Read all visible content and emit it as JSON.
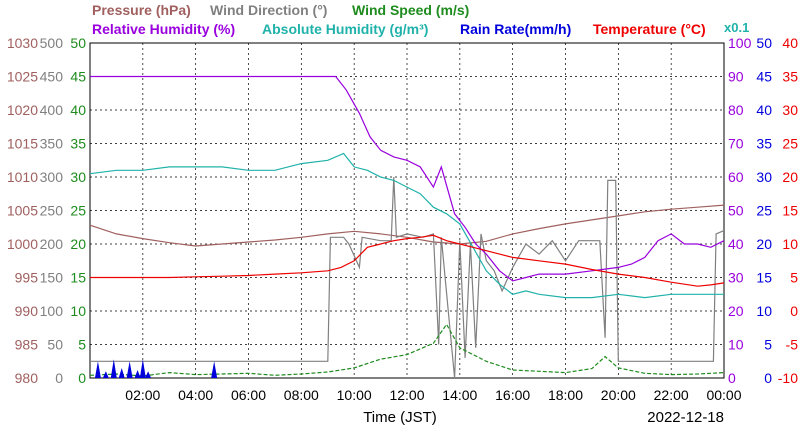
{
  "chart_data": {
    "type": "line",
    "title": "",
    "date": "2022-12-18",
    "xlabel": "Time (JST)",
    "x_ticks": [
      "02:00",
      "04:00",
      "06:00",
      "08:00",
      "10:00",
      "12:00",
      "14:00",
      "16:00",
      "18:00",
      "20:00",
      "22:00",
      "00:00"
    ],
    "x_range_hours": [
      0,
      24
    ],
    "grid": true,
    "legend": {
      "placement": "top",
      "row1": [
        "Pressure (hPa)",
        "Wind Direction (°)",
        "Wind Speed (m/s)"
      ],
      "row2": [
        "Relative Humidity (%)",
        "Absolute Humidity (g/m³)",
        "Rain Rate(mm/h)",
        "Temperature (°C)"
      ],
      "abs_humidity_scale_note": "x0.1"
    },
    "axes": {
      "pressure": {
        "label": "Pressure (hPa)",
        "color": "#a0605f",
        "range": [
          980,
          1030
        ],
        "ticks": [
          "1030",
          "1025",
          "1020",
          "1015",
          "1010",
          "1005",
          "1000",
          "995",
          "990",
          "985",
          "980"
        ]
      },
      "wind_direction": {
        "label": "Wind Direction (°)",
        "color": "#808080",
        "range": [
          0,
          500
        ],
        "ticks": [
          "500",
          "450",
          "400",
          "350",
          "300",
          "250",
          "200",
          "150",
          "100",
          "50",
          "0"
        ]
      },
      "wind_speed": {
        "label": "Wind Speed (m/s)",
        "color": "#1e8c1e",
        "range": [
          0,
          50
        ],
        "ticks": [
          "50",
          "45",
          "40",
          "35",
          "30",
          "25",
          "20",
          "15",
          "10",
          "5",
          "0"
        ]
      },
      "relative_humidity": {
        "label": "Relative Humidity (%)",
        "color": "#9900dd",
        "range": [
          0,
          100
        ],
        "ticks": [
          "100",
          "90",
          "80",
          "70",
          "60",
          "50",
          "40",
          "30",
          "20",
          "10",
          "0"
        ]
      },
      "rain_rate": {
        "label": "Rain Rate(mm/h)",
        "color": "#0000dd",
        "range": [
          0,
          50
        ],
        "ticks": [
          "50",
          "45",
          "40",
          "35",
          "30",
          "25",
          "20",
          "15",
          "10",
          "5",
          "0"
        ]
      },
      "temperature": {
        "label": "Temperature (°C)",
        "color": "#ee0000",
        "range": [
          -10,
          40
        ],
        "ticks": [
          "40",
          "35",
          "30",
          "25",
          "20",
          "15",
          "10",
          "5",
          "0",
          "-5",
          "-10"
        ]
      }
    },
    "series": [
      {
        "name": "Pressure (hPa)",
        "color": "#a0605f",
        "axis": "pressure",
        "points": [
          [
            0,
            1002.8
          ],
          [
            1,
            1001.5
          ],
          [
            2,
            1000.8
          ],
          [
            3,
            1000.2
          ],
          [
            4,
            999.7
          ],
          [
            5,
            1000.0
          ],
          [
            6,
            1000.3
          ],
          [
            7,
            1000.6
          ],
          [
            8,
            1001.0
          ],
          [
            9,
            1001.5
          ],
          [
            10,
            1001.9
          ],
          [
            11,
            1001.5
          ],
          [
            12,
            1001.0
          ],
          [
            13,
            1000.3
          ],
          [
            14,
            1000.0
          ],
          [
            15,
            1000.4
          ],
          [
            16,
            1001.5
          ],
          [
            17,
            1002.3
          ],
          [
            18,
            1003.0
          ],
          [
            19,
            1003.6
          ],
          [
            20,
            1004.2
          ],
          [
            21,
            1004.8
          ],
          [
            22,
            1005.2
          ],
          [
            23,
            1005.5
          ],
          [
            24,
            1005.8
          ]
        ]
      },
      {
        "name": "Wind Direction (°)",
        "color": "#808080",
        "axis": "wind_direction",
        "points": [
          [
            0,
            25
          ],
          [
            4.8,
            25
          ],
          [
            5,
            25
          ],
          [
            8,
            25
          ],
          [
            9.0,
            25
          ],
          [
            9.1,
            210
          ],
          [
            9.6,
            210
          ],
          [
            9.8,
            200
          ],
          [
            10.2,
            165
          ],
          [
            10.3,
            210
          ],
          [
            11,
            205
          ],
          [
            11.4,
            205
          ],
          [
            11.5,
            300
          ],
          [
            11.6,
            210
          ],
          [
            12,
            215
          ],
          [
            12.6,
            210
          ],
          [
            13,
            215
          ],
          [
            13.2,
            50
          ],
          [
            13.3,
            210
          ],
          [
            13.8,
            0
          ],
          [
            14,
            205
          ],
          [
            14.2,
            30
          ],
          [
            14.4,
            200
          ],
          [
            14.6,
            45
          ],
          [
            14.8,
            215
          ],
          [
            15,
            175
          ],
          [
            15.3,
            160
          ],
          [
            15.6,
            130
          ],
          [
            16,
            165
          ],
          [
            16.5,
            200
          ],
          [
            17,
            185
          ],
          [
            17.5,
            205
          ],
          [
            18,
            175
          ],
          [
            18.5,
            205
          ],
          [
            19,
            205
          ],
          [
            19.3,
            205
          ],
          [
            19.5,
            60
          ],
          [
            19.6,
            295
          ],
          [
            19.9,
            295
          ],
          [
            20,
            25
          ],
          [
            21,
            25
          ],
          [
            22,
            25
          ],
          [
            23,
            25
          ],
          [
            23.6,
            25
          ],
          [
            23.7,
            215
          ],
          [
            24,
            220
          ]
        ]
      },
      {
        "name": "Wind Speed (m/s)",
        "color": "#1e8c1e",
        "axis": "wind_speed",
        "points": [
          [
            0,
            0.4
          ],
          [
            1,
            0.6
          ],
          [
            2,
            0.3
          ],
          [
            3,
            0.8
          ],
          [
            4,
            0.5
          ],
          [
            5,
            0.6
          ],
          [
            6,
            0.7
          ],
          [
            7,
            0.4
          ],
          [
            8,
            0.6
          ],
          [
            9,
            0.9
          ],
          [
            10,
            1.5
          ],
          [
            11,
            2.8
          ],
          [
            12,
            3.5
          ],
          [
            13,
            5.2
          ],
          [
            13.5,
            8.0
          ],
          [
            14,
            4.5
          ],
          [
            15,
            2.5
          ],
          [
            16,
            1.2
          ],
          [
            17,
            1.0
          ],
          [
            18,
            0.8
          ],
          [
            19,
            1.4
          ],
          [
            19.5,
            3.2
          ],
          [
            20,
            1.5
          ],
          [
            21,
            0.7
          ],
          [
            22,
            0.5
          ],
          [
            23,
            0.6
          ],
          [
            24,
            0.8
          ]
        ]
      },
      {
        "name": "Relative Humidity (%)",
        "color": "#9900dd",
        "axis": "relative_humidity",
        "points": [
          [
            0,
            90
          ],
          [
            1,
            90
          ],
          [
            4,
            90
          ],
          [
            8,
            90
          ],
          [
            9.3,
            90
          ],
          [
            9.7,
            86
          ],
          [
            10.2,
            79
          ],
          [
            10.6,
            72
          ],
          [
            11,
            68
          ],
          [
            11.5,
            66
          ],
          [
            12,
            65
          ],
          [
            12.5,
            63
          ],
          [
            13,
            57
          ],
          [
            13.3,
            63
          ],
          [
            13.8,
            49
          ],
          [
            14.2,
            45
          ],
          [
            14.6,
            40
          ],
          [
            15,
            37
          ],
          [
            15.5,
            32
          ],
          [
            16,
            29
          ],
          [
            16.5,
            30
          ],
          [
            17,
            31
          ],
          [
            18,
            31
          ],
          [
            19,
            32
          ],
          [
            20,
            33
          ],
          [
            20.5,
            34
          ],
          [
            21,
            36
          ],
          [
            21.5,
            41
          ],
          [
            22,
            43
          ],
          [
            22.5,
            40
          ],
          [
            23,
            40
          ],
          [
            23.5,
            39
          ],
          [
            24,
            41
          ]
        ]
      },
      {
        "name": "Absolute Humidity (g/m³)",
        "color": "#20b2aa",
        "axis": "relative_humidity",
        "scale": "x0.1",
        "points": [
          [
            0,
            61
          ],
          [
            1,
            62
          ],
          [
            2,
            62
          ],
          [
            3,
            63
          ],
          [
            4,
            63
          ],
          [
            5,
            63
          ],
          [
            6,
            62
          ],
          [
            7,
            62
          ],
          [
            8,
            64
          ],
          [
            9,
            65
          ],
          [
            9.6,
            67
          ],
          [
            10,
            63
          ],
          [
            10.5,
            62
          ],
          [
            11,
            60
          ],
          [
            11.5,
            59
          ],
          [
            12,
            57
          ],
          [
            12.5,
            55
          ],
          [
            13,
            51
          ],
          [
            13.5,
            49
          ],
          [
            14,
            46
          ],
          [
            14.5,
            39
          ],
          [
            15,
            32
          ],
          [
            15.5,
            28
          ],
          [
            16,
            25
          ],
          [
            16.5,
            26
          ],
          [
            17,
            25
          ],
          [
            18,
            24
          ],
          [
            19,
            24
          ],
          [
            20,
            25
          ],
          [
            21,
            24
          ],
          [
            22,
            25
          ],
          [
            23,
            25
          ],
          [
            24,
            25
          ]
        ]
      },
      {
        "name": "Rain Rate(mm/h)",
        "color": "#0000dd",
        "axis": "rain_rate",
        "points": [
          [
            0.3,
            2.5
          ],
          [
            0.6,
            1.0
          ],
          [
            0.9,
            2.8
          ],
          [
            1.2,
            1.5
          ],
          [
            1.5,
            2.5
          ],
          [
            1.8,
            1.2
          ],
          [
            2.0,
            2.8
          ],
          [
            2.2,
            1.0
          ],
          [
            4.7,
            2.5
          ]
        ]
      },
      {
        "name": "Temperature (°C)",
        "color": "#ee0000",
        "axis": "temperature",
        "points": [
          [
            0,
            5.0
          ],
          [
            1,
            5.0
          ],
          [
            2,
            5.0
          ],
          [
            3,
            5.0
          ],
          [
            4,
            5.1
          ],
          [
            5,
            5.2
          ],
          [
            6,
            5.3
          ],
          [
            7,
            5.5
          ],
          [
            8,
            5.7
          ],
          [
            9,
            6.0
          ],
          [
            9.5,
            6.5
          ],
          [
            10,
            7.5
          ],
          [
            10.5,
            9.5
          ],
          [
            11,
            10.0
          ],
          [
            11.5,
            10.5
          ],
          [
            12,
            10.8
          ],
          [
            12.5,
            11.0
          ],
          [
            13,
            11.3
          ],
          [
            13.5,
            10.5
          ],
          [
            14,
            10.0
          ],
          [
            14.5,
            9.5
          ],
          [
            15,
            9.0
          ],
          [
            15.5,
            8.5
          ],
          [
            16,
            8.0
          ],
          [
            17,
            7.5
          ],
          [
            18,
            7.0
          ],
          [
            19,
            6.2
          ],
          [
            20,
            5.5
          ],
          [
            21,
            5.0
          ],
          [
            22,
            4.3
          ],
          [
            23,
            3.7
          ],
          [
            23.5,
            3.9
          ],
          [
            24,
            4.2
          ]
        ]
      }
    ]
  }
}
